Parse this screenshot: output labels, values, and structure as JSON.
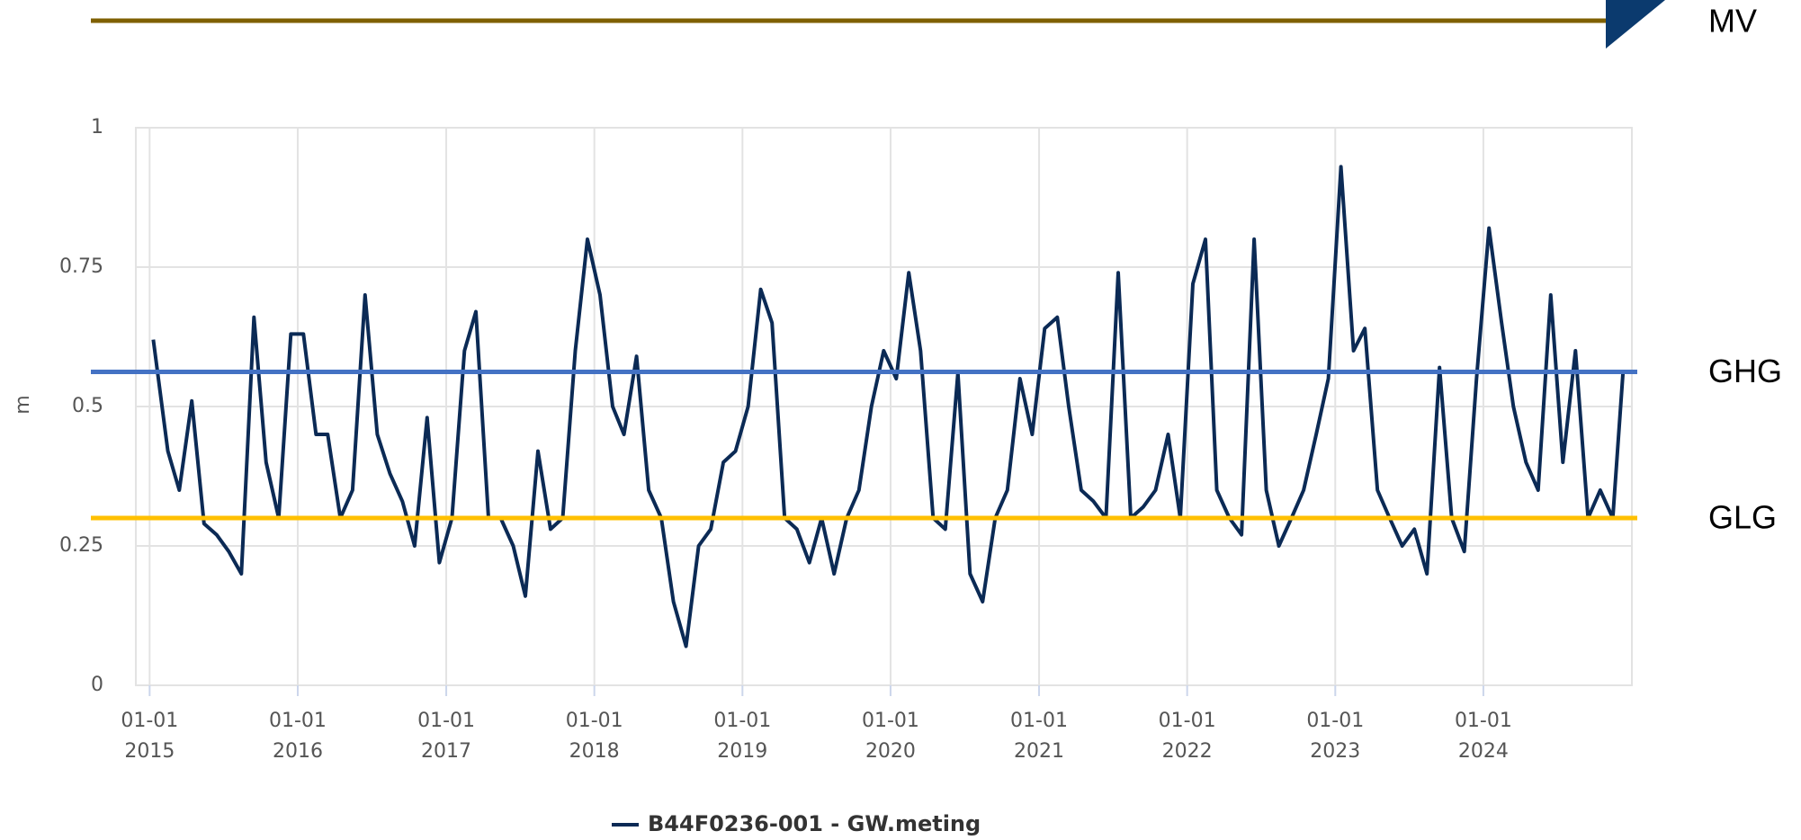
{
  "chart_data": {
    "type": "line",
    "y_label": "m",
    "xlim": [
      "2014-11-28",
      "2025-01-01"
    ],
    "ylim": [
      0,
      1
    ],
    "yticks": [
      0,
      {
        "value": 0.25,
        "label": "0.25"
      },
      {
        "value": 0.5,
        "label": "0.5"
      },
      {
        "value": 0.75,
        "label": "0.75"
      },
      1
    ],
    "xticks": [
      {
        "value": "2015-01-01",
        "label": "01-01 2015"
      },
      {
        "value": "2016-01-01",
        "label": "01-01 2016"
      },
      {
        "value": "2017-01-01",
        "label": "01-01 2017"
      },
      {
        "value": "2018-01-01",
        "label": "01-01 2018"
      },
      {
        "value": "2019-01-01",
        "label": "01-01 2019"
      },
      {
        "value": "2020-01-01",
        "label": "01-01 2020"
      },
      {
        "value": "2021-01-01",
        "label": "01-01 2021"
      },
      {
        "value": "2022-01-01",
        "label": "01-01 2022"
      },
      {
        "value": "2023-01-01",
        "label": "01-01 2023"
      },
      {
        "value": "2024-01-01",
        "label": "01-01 2024"
      }
    ],
    "grid": true,
    "x": [
      "2015-01-10",
      "2015-02-15",
      "2015-03-15",
      "2015-04-15",
      "2015-05-15",
      "2015-06-15",
      "2015-07-15",
      "2015-08-15",
      "2015-09-15",
      "2015-10-15",
      "2015-11-15",
      "2015-12-15",
      "2016-01-15",
      "2016-02-15",
      "2016-03-15",
      "2016-04-15",
      "2016-05-15",
      "2016-06-15",
      "2016-07-15",
      "2016-08-15",
      "2016-09-15",
      "2016-10-15",
      "2016-11-15",
      "2016-12-15",
      "2017-01-15",
      "2017-02-15",
      "2017-03-15",
      "2017-04-15",
      "2017-05-15",
      "2017-06-15",
      "2017-07-15",
      "2017-08-15",
      "2017-09-15",
      "2017-10-15",
      "2017-11-15",
      "2017-12-15",
      "2018-01-15",
      "2018-02-15",
      "2018-03-15",
      "2018-04-15",
      "2018-05-15",
      "2018-06-15",
      "2018-07-15",
      "2018-08-15",
      "2018-09-15",
      "2018-10-15",
      "2018-11-15",
      "2018-12-15",
      "2019-01-15",
      "2019-02-15",
      "2019-03-15",
      "2019-04-15",
      "2019-05-15",
      "2019-06-15",
      "2019-07-15",
      "2019-08-15",
      "2019-09-15",
      "2019-10-15",
      "2019-11-15",
      "2019-12-15",
      "2020-01-15",
      "2020-02-15",
      "2020-03-15",
      "2020-04-15",
      "2020-05-15",
      "2020-06-15",
      "2020-07-15",
      "2020-08-15",
      "2020-09-15",
      "2020-10-15",
      "2020-11-15",
      "2020-12-15",
      "2021-01-15",
      "2021-02-15",
      "2021-03-15",
      "2021-04-15",
      "2021-05-15",
      "2021-06-15",
      "2021-07-15",
      "2021-08-15",
      "2021-09-15",
      "2021-10-15",
      "2021-11-15",
      "2021-12-15",
      "2022-01-15",
      "2022-02-15",
      "2022-03-15",
      "2022-04-15",
      "2022-05-15",
      "2022-06-15",
      "2022-07-15",
      "2022-08-15",
      "2022-09-15",
      "2022-10-15",
      "2022-11-15",
      "2022-12-15",
      "2023-01-15",
      "2023-02-15",
      "2023-03-15",
      "2023-04-15",
      "2023-05-15",
      "2023-06-15",
      "2023-07-15",
      "2023-08-15",
      "2023-09-15",
      "2023-10-15",
      "2023-11-15",
      "2023-12-15",
      "2024-01-15",
      "2024-02-15",
      "2024-03-15",
      "2024-04-15",
      "2024-05-15",
      "2024-06-15",
      "2024-07-15",
      "2024-08-15",
      "2024-09-15",
      "2024-10-15",
      "2024-11-15",
      "2024-12-10"
    ],
    "series": [
      {
        "name": "B44F0236-001 - GW.meting",
        "color": "#0b2a55",
        "values": [
          0.62,
          0.42,
          0.35,
          0.51,
          0.29,
          0.27,
          0.24,
          0.2,
          0.66,
          0.4,
          0.3,
          0.63,
          0.63,
          0.45,
          0.45,
          0.3,
          0.35,
          0.7,
          0.45,
          0.38,
          0.33,
          0.25,
          0.48,
          0.22,
          0.3,
          0.6,
          0.67,
          0.3,
          0.3,
          0.25,
          0.16,
          0.42,
          0.28,
          0.3,
          0.6,
          0.8,
          0.7,
          0.5,
          0.45,
          0.59,
          0.35,
          0.3,
          0.15,
          0.07,
          0.25,
          0.28,
          0.4,
          0.42,
          0.5,
          0.71,
          0.65,
          0.3,
          0.28,
          0.22,
          0.3,
          0.2,
          0.3,
          0.35,
          0.5,
          0.6,
          0.55,
          0.74,
          0.6,
          0.3,
          0.28,
          0.56,
          0.2,
          0.15,
          0.3,
          0.35,
          0.55,
          0.45,
          0.64,
          0.66,
          0.5,
          0.35,
          0.33,
          0.3,
          0.74,
          0.3,
          0.32,
          0.35,
          0.45,
          0.3,
          0.72,
          0.8,
          0.35,
          0.3,
          0.27,
          0.8,
          0.35,
          0.25,
          0.3,
          0.35,
          0.45,
          0.55,
          0.93,
          0.6,
          0.64,
          0.35,
          0.3,
          0.25,
          0.28,
          0.2,
          0.57,
          0.3,
          0.24,
          0.55,
          0.82,
          0.65,
          0.5,
          0.4,
          0.35,
          0.7,
          0.4,
          0.6,
          0.3,
          0.35,
          0.3,
          0.56
        ]
      }
    ],
    "reference_lines": [
      {
        "label": "GHG",
        "value": 0.562,
        "color": "#4472c4"
      },
      {
        "label": "GLG",
        "value": 0.3,
        "color": "#ffc000"
      }
    ],
    "top_label": "MV"
  }
}
